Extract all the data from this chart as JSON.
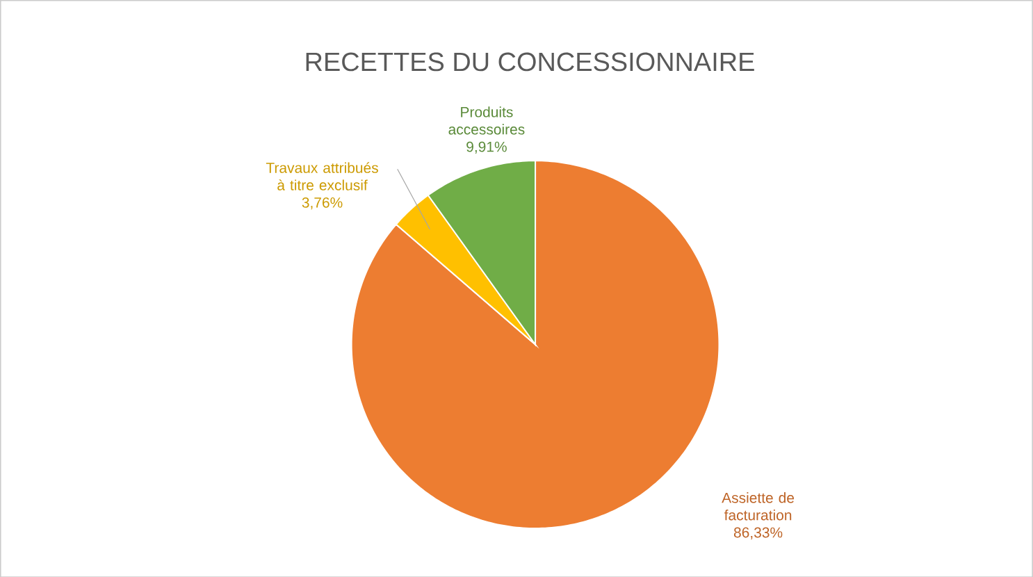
{
  "chart_data": {
    "type": "pie",
    "title": "RECETTES DU CONCESSIONNAIRE",
    "categories": [
      "Assiette de facturation",
      "Travaux attribués à titre exclusif",
      "Produits accessoires"
    ],
    "values": [
      86.33,
      3.76,
      9.91
    ],
    "colors": [
      "#ed7d31",
      "#ffc000",
      "#70ad47"
    ],
    "value_labels": [
      "86,33%",
      "3,76%",
      "9,91%"
    ]
  }
}
